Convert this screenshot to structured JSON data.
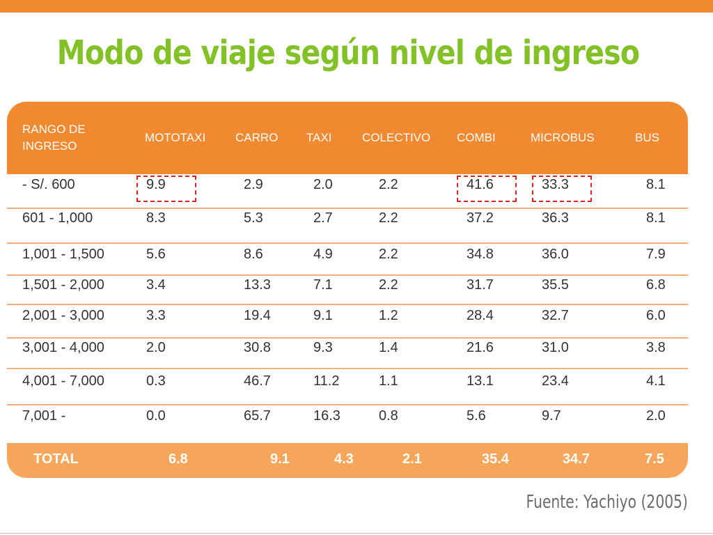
{
  "title": "Modo de viaje según nivel de ingreso",
  "source": "Fuente: Yachiyo (2005)",
  "colors": {
    "accent": "#f0892f",
    "title": "#82c226",
    "highlight": "#d52121",
    "total": "#f6a65a"
  },
  "table": {
    "headers": [
      "RANGO DE\nINGRESO",
      "MOTOTAXI",
      "CARRO",
      "TAXI",
      "COLECTIVO",
      "COMBI",
      "MICROBUS",
      "BUS"
    ],
    "rows": [
      [
        "- S/. 600",
        "9.9",
        "2.9",
        "2.0",
        "2.2",
        "41.6",
        "33.3",
        "8.1"
      ],
      [
        "601 - 1,000",
        "8.3",
        "5.3",
        "2.7",
        "2.2",
        "37.2",
        "36.3",
        "8.1"
      ],
      [
        "1,001  -  1,500",
        "5.6",
        "8.6",
        "4.9",
        "2.2",
        "34.8",
        "36.0",
        "7.9"
      ],
      [
        "1,501  -  2,000",
        "3.4",
        "13.3",
        "7.1",
        "2.2",
        "31.7",
        "35.5",
        "6.8"
      ],
      [
        "2,001  -  3,000",
        "3.3",
        "19.4",
        "9.1",
        "1.2",
        "28.4",
        "32.7",
        "6.0"
      ],
      [
        "3,001  -  4,000",
        "2.0",
        "30.8",
        "9.3",
        "1.4",
        "21.6",
        "31.0",
        "3.8"
      ],
      [
        "4,001  -  7,000",
        "0.3",
        "46.7",
        "11.2",
        "1.1",
        "13.1",
        "23.4",
        "4.1"
      ],
      [
        "7,001 -",
        "0.0",
        "65.7",
        "16.3",
        "0.8",
        "5.6",
        "9.7",
        "2.0"
      ]
    ],
    "total": [
      "TOTAL",
      "6.8",
      "9.1",
      "4.3",
      "2.1",
      "35.4",
      "34.7",
      "7.5"
    ],
    "highlighted_cells": [
      [
        0,
        1
      ],
      [
        0,
        5
      ],
      [
        0,
        6
      ]
    ]
  }
}
